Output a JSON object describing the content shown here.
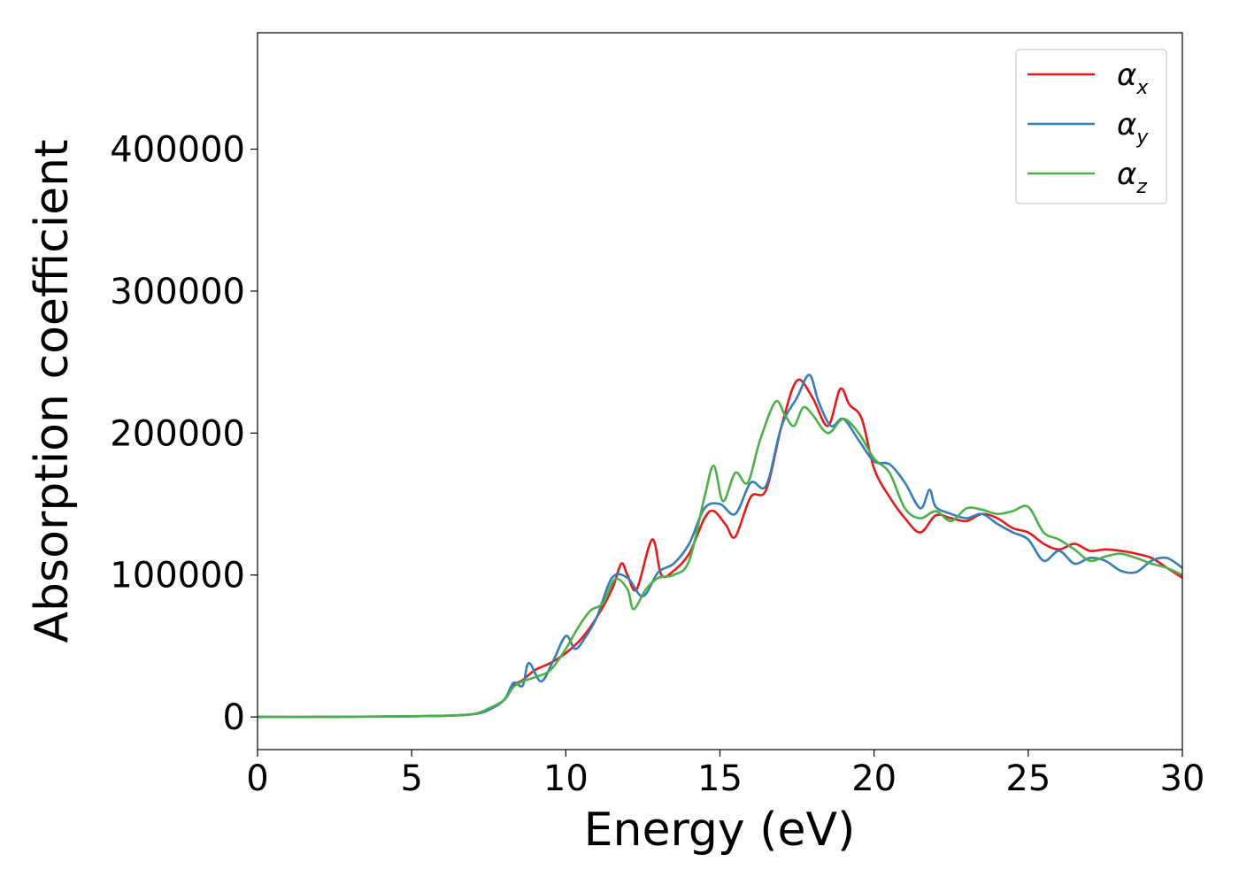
{
  "chart_data": {
    "type": "line",
    "xlabel": "Energy (eV)",
    "ylabel": "Absorption coefficient",
    "xlim": [
      0,
      30
    ],
    "ylim": [
      -23000,
      482000
    ],
    "x_ticks": [
      0,
      5,
      10,
      15,
      20,
      25,
      30
    ],
    "x_tick_labels": [
      "0",
      "5",
      "10",
      "15",
      "20",
      "25",
      "30"
    ],
    "y_ticks": [
      0,
      100000,
      200000,
      300000,
      400000
    ],
    "y_tick_labels": [
      "0",
      "100000",
      "200000",
      "300000",
      "400000"
    ],
    "grid": false,
    "legend_position": "top-right",
    "series": [
      {
        "name": "α_x",
        "label_base": "α",
        "label_sub": "x",
        "color": "#e41a1c",
        "x": [
          0,
          2,
          4,
          6,
          7,
          7.5,
          8,
          8.3,
          8.6,
          9,
          9.5,
          10,
          10.5,
          11,
          11.5,
          11.8,
          12,
          12.3,
          12.8,
          13.1,
          13.5,
          14,
          14.5,
          14.8,
          15.2,
          15.5,
          16,
          16.5,
          17,
          17.5,
          18,
          18.5,
          18.9,
          19.2,
          19.6,
          20,
          20.5,
          21,
          21.5,
          22,
          22.5,
          23,
          23.5,
          24,
          24.5,
          25,
          25.5,
          26,
          26.5,
          27,
          27.5,
          28,
          28.5,
          29,
          29.5,
          30
        ],
        "y": [
          0,
          0,
          300,
          800,
          2000,
          5000,
          12000,
          22000,
          26000,
          33000,
          38000,
          45000,
          55000,
          70000,
          90000,
          108000,
          100000,
          90000,
          125000,
          100000,
          103000,
          115000,
          140000,
          145000,
          135000,
          127000,
          155000,
          160000,
          205000,
          237000,
          225000,
          205000,
          231000,
          220000,
          210000,
          175000,
          155000,
          140000,
          130000,
          142000,
          140000,
          138000,
          143000,
          140000,
          133000,
          130000,
          122000,
          118000,
          122000,
          117000,
          118000,
          117000,
          115000,
          112000,
          105000,
          98000
        ]
      },
      {
        "name": "α_y",
        "label_base": "α",
        "label_sub": "y",
        "color": "#377eb8",
        "x": [
          0,
          2,
          4,
          6,
          7,
          7.5,
          8,
          8.3,
          8.6,
          8.8,
          9.2,
          9.6,
          10,
          10.3,
          10.6,
          11,
          11.5,
          12,
          12.5,
          13,
          13.5,
          14,
          14.5,
          15,
          15.5,
          16,
          16.5,
          17,
          17.5,
          17.9,
          18.2,
          18.6,
          19,
          19.5,
          20,
          20.5,
          21,
          21.5,
          21.8,
          22,
          22.5,
          23,
          23.5,
          24,
          24.5,
          25,
          25.5,
          26,
          26.5,
          27,
          27.5,
          28,
          28.5,
          29,
          29.5,
          30
        ],
        "y": [
          0,
          0,
          300,
          800,
          2000,
          5000,
          12000,
          24000,
          22000,
          38000,
          25000,
          40000,
          57000,
          48000,
          55000,
          70000,
          98000,
          98000,
          85000,
          102000,
          108000,
          122000,
          147000,
          150000,
          143000,
          165000,
          163000,
          205000,
          225000,
          241000,
          222000,
          205000,
          210000,
          195000,
          180000,
          178000,
          165000,
          147000,
          160000,
          148000,
          143000,
          140000,
          143000,
          136000,
          130000,
          125000,
          110000,
          117000,
          108000,
          112000,
          110000,
          103000,
          102000,
          110000,
          112000,
          105000
        ]
      },
      {
        "name": "α_z",
        "label_base": "α",
        "label_sub": "z",
        "color": "#4daf4a",
        "x": [
          0,
          2,
          4,
          6,
          7,
          7.5,
          8,
          8.3,
          8.6,
          9,
          9.5,
          10,
          10.4,
          10.8,
          11.2,
          11.6,
          12,
          12.2,
          12.6,
          13,
          13.5,
          14,
          14.5,
          14.8,
          15.1,
          15.5,
          15.9,
          16.3,
          16.8,
          17.1,
          17.4,
          17.7,
          18,
          18.5,
          19,
          19.5,
          20,
          20.5,
          21,
          21.5,
          22,
          22.5,
          23,
          23.5,
          24,
          24.5,
          25,
          25.5,
          26,
          26.5,
          27,
          27.5,
          28,
          28.5,
          29,
          29.5,
          30
        ],
        "y": [
          0,
          0,
          300,
          800,
          2000,
          6000,
          12000,
          21000,
          25000,
          28000,
          33000,
          48000,
          63000,
          75000,
          80000,
          97000,
          90000,
          76000,
          90000,
          98000,
          100000,
          110000,
          155000,
          177000,
          152000,
          172000,
          165000,
          195000,
          222000,
          213000,
          205000,
          218000,
          213000,
          200000,
          210000,
          200000,
          182000,
          172000,
          147000,
          140000,
          145000,
          138000,
          147000,
          146000,
          143000,
          145000,
          148000,
          130000,
          125000,
          118000,
          110000,
          113000,
          115000,
          112000,
          108000,
          105000,
          100000
        ]
      }
    ]
  }
}
